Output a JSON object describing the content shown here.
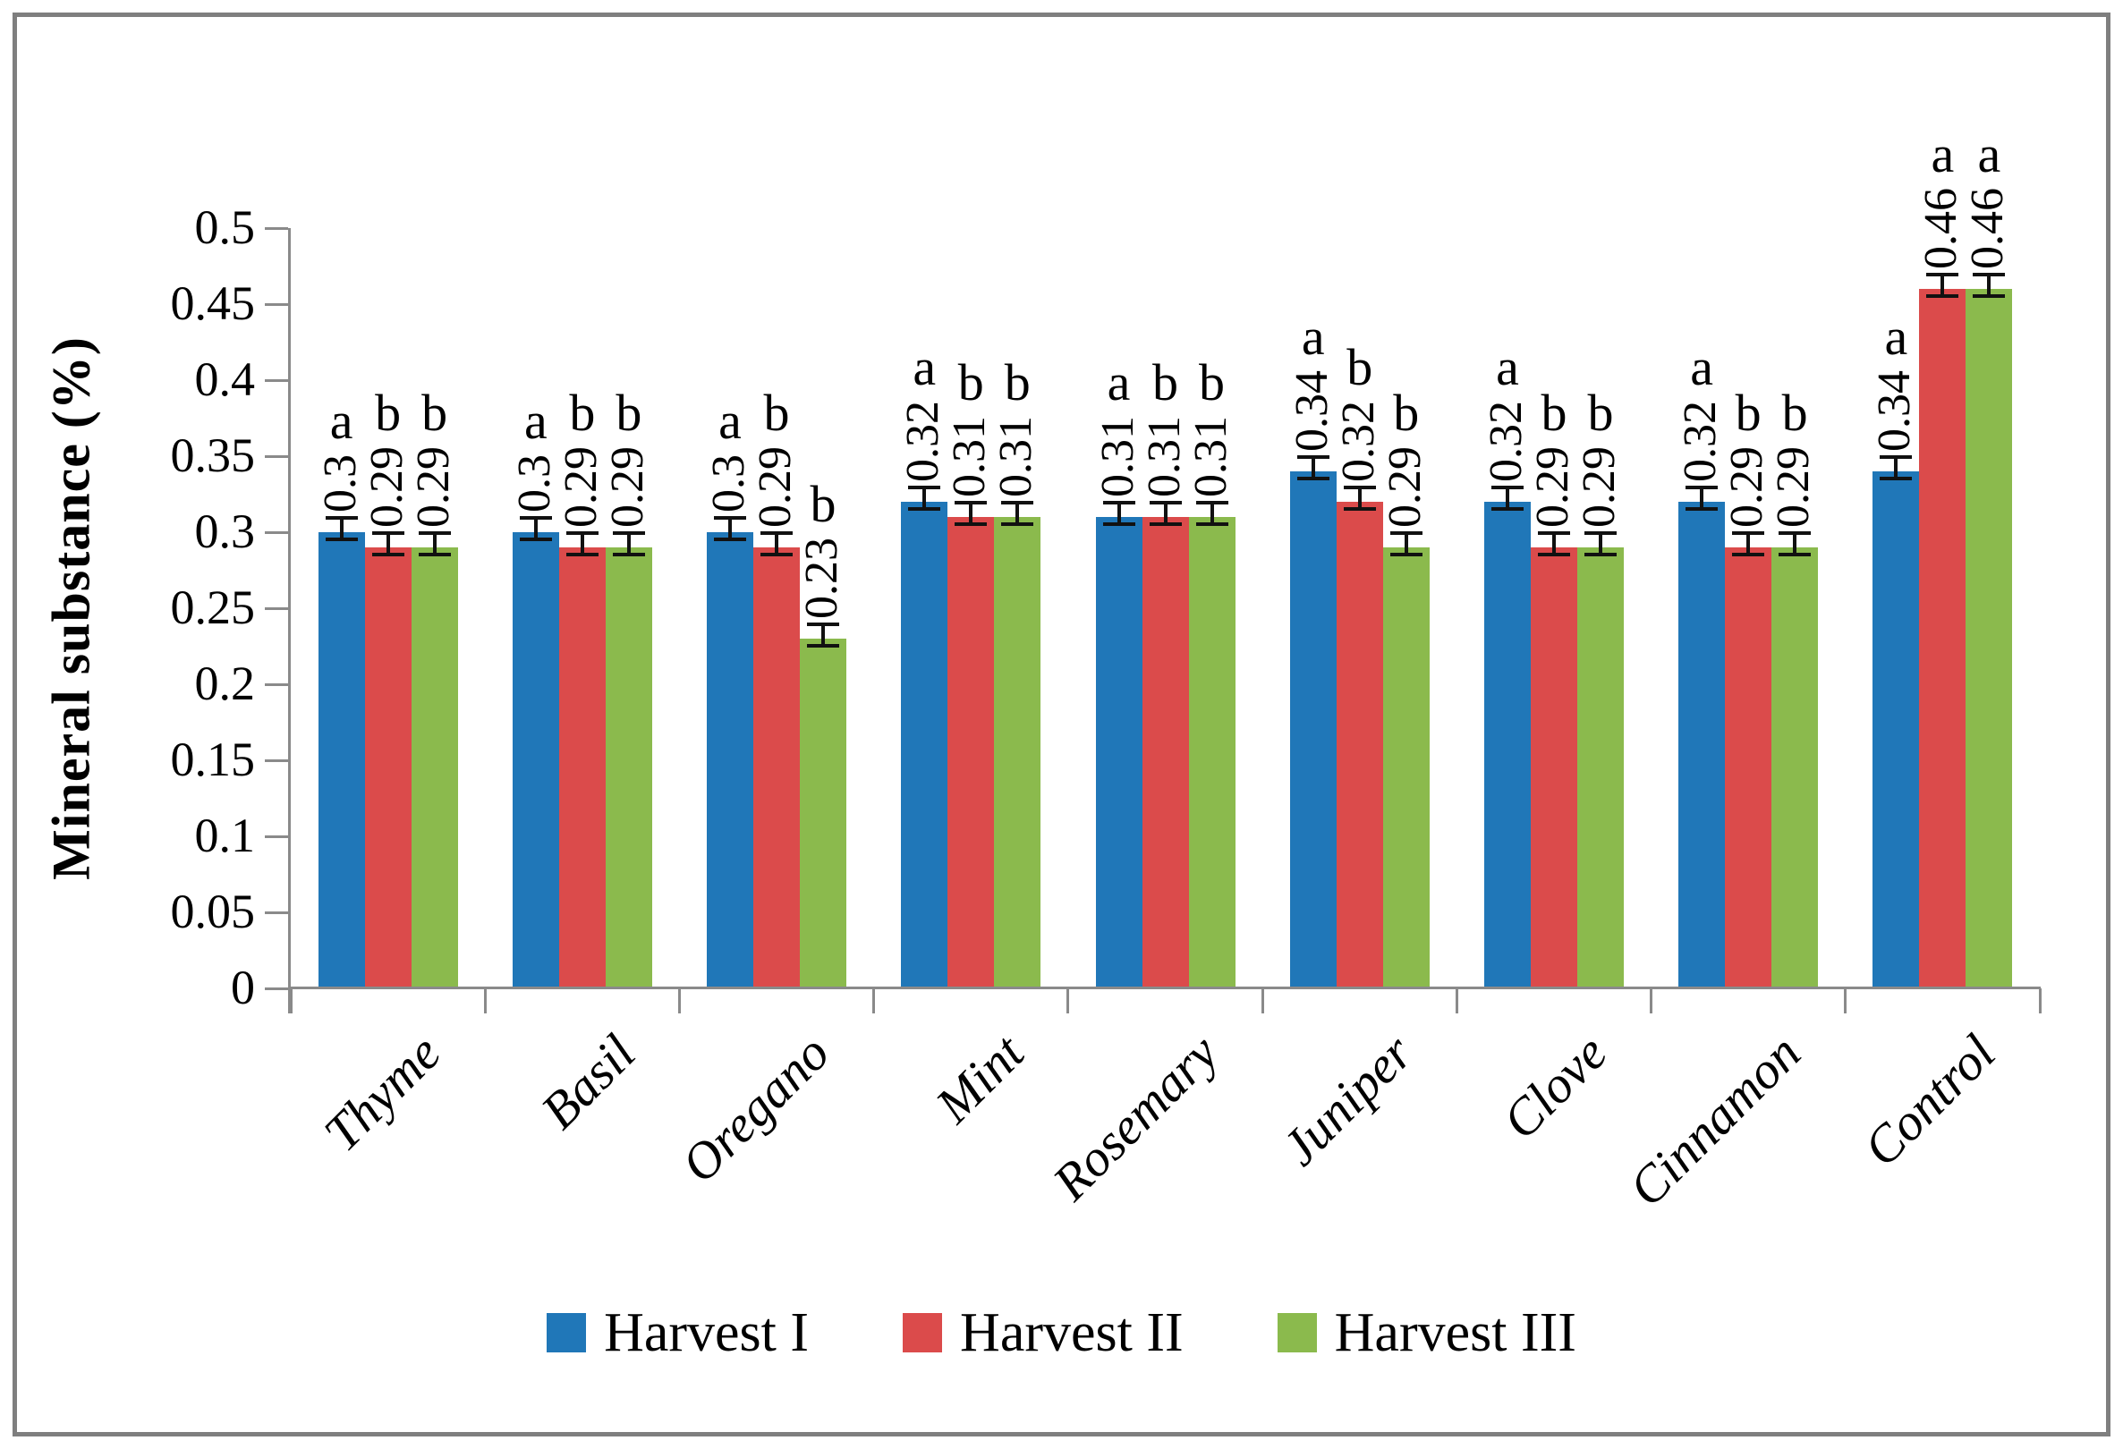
{
  "chart_data": {
    "type": "bar",
    "title": "",
    "xlabel": "",
    "ylabel": "Mineral substance (%)",
    "ylim": [
      0,
      0.5
    ],
    "ytick_step": 0.05,
    "yticks_top_to_bottom": [
      "0.5",
      "0.45",
      "0.4",
      "0.35",
      "0.3",
      "0.25",
      "0.2",
      "0.15",
      "0.1",
      "0.05",
      "0"
    ],
    "grid": false,
    "legend_position": "bottom",
    "error_bars": true,
    "categories": [
      "Thyme",
      "Basil",
      "Oregano",
      "Mint",
      "Rosemary",
      "Juniper",
      "Clove",
      "Cinnamon",
      "Control"
    ],
    "series": [
      {
        "name": "Harvest I",
        "color": "#2077b8",
        "values": [
          0.3,
          0.3,
          0.3,
          0.32,
          0.31,
          0.34,
          0.32,
          0.32,
          0.34
        ],
        "labels": [
          "0.3",
          "0.3",
          "0.3",
          "0.32",
          "0.31",
          "0.34",
          "0.32",
          "0.32",
          "0.34"
        ],
        "letters": [
          "a",
          "a",
          "a",
          "a",
          "a",
          "a",
          "a",
          "a",
          "a"
        ]
      },
      {
        "name": "Harvest II",
        "color": "#db4b4b",
        "values": [
          0.29,
          0.29,
          0.29,
          0.31,
          0.31,
          0.32,
          0.29,
          0.29,
          0.46
        ],
        "labels": [
          "0.29",
          "0.29",
          "0.29",
          "0.31",
          "0.31",
          "0.32",
          "0.29",
          "0.29",
          "0.46"
        ],
        "letters": [
          "b",
          "b",
          "b",
          "b",
          "b",
          "b",
          "b",
          "b",
          "a"
        ]
      },
      {
        "name": "Harvest III",
        "color": "#8bba4d",
        "values": [
          0.29,
          0.29,
          0.23,
          0.31,
          0.31,
          0.29,
          0.29,
          0.29,
          0.46
        ],
        "labels": [
          "0.29",
          "0.29",
          "0.23",
          "0.31",
          "0.31",
          "0.29",
          "0.29",
          "0.29",
          "0.46"
        ],
        "letters": [
          "b",
          "b",
          "b",
          "b",
          "b",
          "b",
          "b",
          "b",
          "a"
        ]
      }
    ]
  }
}
